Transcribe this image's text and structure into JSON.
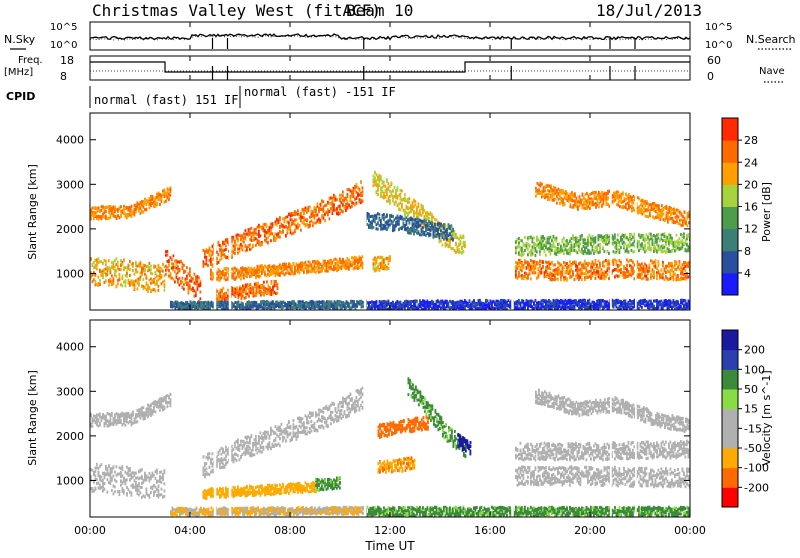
{
  "header": {
    "station": "Christmas Valley West (fitACF)",
    "beam": "Beam 10",
    "date": "18/Jul/2013"
  },
  "aux_panels": {
    "nsky_label": "N.Sky",
    "nsearch_label": "N.Search",
    "exp_top": "10^5",
    "exp_bottom": "10^0",
    "freq_label_line1": "Freq.",
    "freq_label_line2": "[MHz]",
    "freq_ticks": [
      "18",
      "8"
    ],
    "nave_label": "Nave",
    "nave_ticks": [
      "60",
      "0"
    ],
    "cpid_label": "CPID",
    "cpid_modes": [
      "normal (fast) 151 IF",
      "normal (fast) -151 IF"
    ]
  },
  "time_axis": {
    "label": "Time UT",
    "ticks": [
      "00:00",
      "04:00",
      "08:00",
      "12:00",
      "16:00",
      "20:00",
      "00:00"
    ]
  },
  "colors": {
    "power": [
      "#1a1aff",
      "#2b4fa0",
      "#3b7f77",
      "#4c9c4c",
      "#a7d33c",
      "#ff9f00",
      "#ff6a00",
      "#ff2a00"
    ],
    "velocity": [
      "#ff0000",
      "#ff6a00",
      "#ffaa00",
      "#b0b0b0",
      "#b0b0b0",
      "#88dd44",
      "#3a8a3a",
      "#2b3fb0",
      "#1a1aa0"
    ]
  },
  "chart_data": [
    {
      "type": "heatmap",
      "panel": "power",
      "ylabel": "Slant Range [km]",
      "y_ticks": [
        1000,
        2000,
        3000,
        4000
      ],
      "ylim": [
        180,
        4600
      ],
      "xlim": [
        0,
        24
      ],
      "colorbar": {
        "label": "Power [dB]",
        "ticks": [
          "4",
          "8",
          "12",
          "16",
          "20",
          "24",
          "28"
        ]
      },
      "bands": [
        {
          "x": [
            0,
            1.6,
            2.8,
            3.2
          ],
          "y": [
            2350,
            2380,
            2700,
            2800
          ],
          "thick": 280,
          "value": 24
        },
        {
          "x": [
            0,
            1.2,
            2.5,
            3.0
          ],
          "y": [
            1050,
            1000,
            900,
            950
          ],
          "thick": 650,
          "value": 22
        },
        {
          "x": [
            3.0,
            3.8,
            4.4
          ],
          "y": [
            1250,
            900,
            600
          ],
          "thick": 600,
          "value": 27
        },
        {
          "x": [
            4.5,
            6.0,
            7.5,
            9.5,
            10.9
          ],
          "y": [
            1300,
            1700,
            2000,
            2450,
            2850
          ],
          "thick": 480,
          "value": 26
        },
        {
          "x": [
            4.8,
            7.0,
            9.0,
            10.9
          ],
          "y": [
            950,
            1050,
            1150,
            1250
          ],
          "thick": 260,
          "value": 24
        },
        {
          "x": [
            5.0,
            6.5,
            7.5
          ],
          "y": [
            500,
            620,
            700
          ],
          "thick": 300,
          "value": 26
        },
        {
          "x": [
            11.3,
            12.2,
            13.2,
            14.0,
            15.0
          ],
          "y": [
            3100,
            2700,
            2300,
            1900,
            1600
          ],
          "thick": 500,
          "value": 20
        },
        {
          "x": [
            11.0,
            12.5,
            14.5
          ],
          "y": [
            2200,
            2100,
            1900
          ],
          "thick": 350,
          "value": 8
        },
        {
          "x": [
            11.3,
            12.0
          ],
          "y": [
            1200,
            1250
          ],
          "thick": 300,
          "value": 22
        },
        {
          "x": [
            17.0,
            19.0,
            21.0,
            24.0
          ],
          "y": [
            1100,
            1050,
            1100,
            1050
          ],
          "thick": 420,
          "value": 25
        },
        {
          "x": [
            17.0,
            20.0,
            24.0
          ],
          "y": [
            1600,
            1650,
            1700
          ],
          "thick": 420,
          "value": 16
        },
        {
          "x": [
            17.8,
            19.5,
            21.0,
            22.5,
            24.0
          ],
          "y": [
            2900,
            2600,
            2700,
            2400,
            2200
          ],
          "thick": 350,
          "value": 24
        },
        {
          "x": [
            3.2,
            10.9
          ],
          "y": [
            280,
            300
          ],
          "thick": 160,
          "value": 8
        },
        {
          "x": [
            11.0,
            17.0,
            24.0
          ],
          "y": [
            280,
            300,
            300
          ],
          "thick": 200,
          "value": 4
        }
      ]
    },
    {
      "type": "heatmap",
      "panel": "velocity",
      "ylabel": "Slant Range [km]",
      "y_ticks": [
        1000,
        2000,
        3000,
        4000
      ],
      "ylim": [
        180,
        4600
      ],
      "xlim": [
        0,
        24
      ],
      "colorbar": {
        "label": "Velocity [m s^-1]",
        "ticks": [
          "200",
          "100",
          "50",
          "15",
          "-15",
          "-50",
          "-100",
          "-200"
        ]
      },
      "bands": [
        {
          "x": [
            0,
            1.6,
            2.8,
            3.2
          ],
          "y": [
            2350,
            2380,
            2700,
            2800
          ],
          "thick": 280,
          "value": 0
        },
        {
          "x": [
            0,
            1.2,
            2.5,
            3.0
          ],
          "y": [
            1050,
            1000,
            900,
            950
          ],
          "thick": 650,
          "value": 0
        },
        {
          "x": [
            4.5,
            6.0,
            7.5,
            9.5,
            10.9
          ],
          "y": [
            1300,
            1700,
            2000,
            2450,
            2850
          ],
          "thick": 480,
          "value": 0
        },
        {
          "x": [
            4.5,
            6.0,
            7.5,
            9.0
          ],
          "y": [
            700,
            750,
            800,
            850
          ],
          "thick": 220,
          "value": -60
        },
        {
          "x": [
            9.0,
            10.0
          ],
          "y": [
            900,
            950
          ],
          "thick": 250,
          "value": 40
        },
        {
          "x": [
            11.5,
            12.5,
            13.5
          ],
          "y": [
            2100,
            2200,
            2300
          ],
          "thick": 300,
          "value": -120
        },
        {
          "x": [
            11.5,
            12.5,
            13.0
          ],
          "y": [
            1300,
            1350,
            1400
          ],
          "thick": 280,
          "value": -70
        },
        {
          "x": [
            12.7,
            13.5,
            14.2,
            15.0
          ],
          "y": [
            3100,
            2600,
            2100,
            1700
          ],
          "thick": 380,
          "value": 40
        },
        {
          "x": [
            14.7,
            15.2
          ],
          "y": [
            1900,
            1700
          ],
          "thick": 300,
          "value": 180
        },
        {
          "x": [
            17.0,
            20.0,
            24.0
          ],
          "y": [
            1100,
            1100,
            1050
          ],
          "thick": 420,
          "value": 0
        },
        {
          "x": [
            17.0,
            20.0,
            24.0
          ],
          "y": [
            1650,
            1650,
            1700
          ],
          "thick": 380,
          "value": 0
        },
        {
          "x": [
            17.8,
            19.5,
            21.0,
            22.5,
            24.0
          ],
          "y": [
            2900,
            2600,
            2700,
            2400,
            2200
          ],
          "thick": 320,
          "value": 0
        },
        {
          "x": [
            3.2,
            10.9
          ],
          "y": [
            300,
            320
          ],
          "thick": 160,
          "value": -30
        },
        {
          "x": [
            11.0,
            17.0,
            24.0
          ],
          "y": [
            300,
            300,
            300
          ],
          "thick": 200,
          "value": 40
        }
      ]
    }
  ]
}
